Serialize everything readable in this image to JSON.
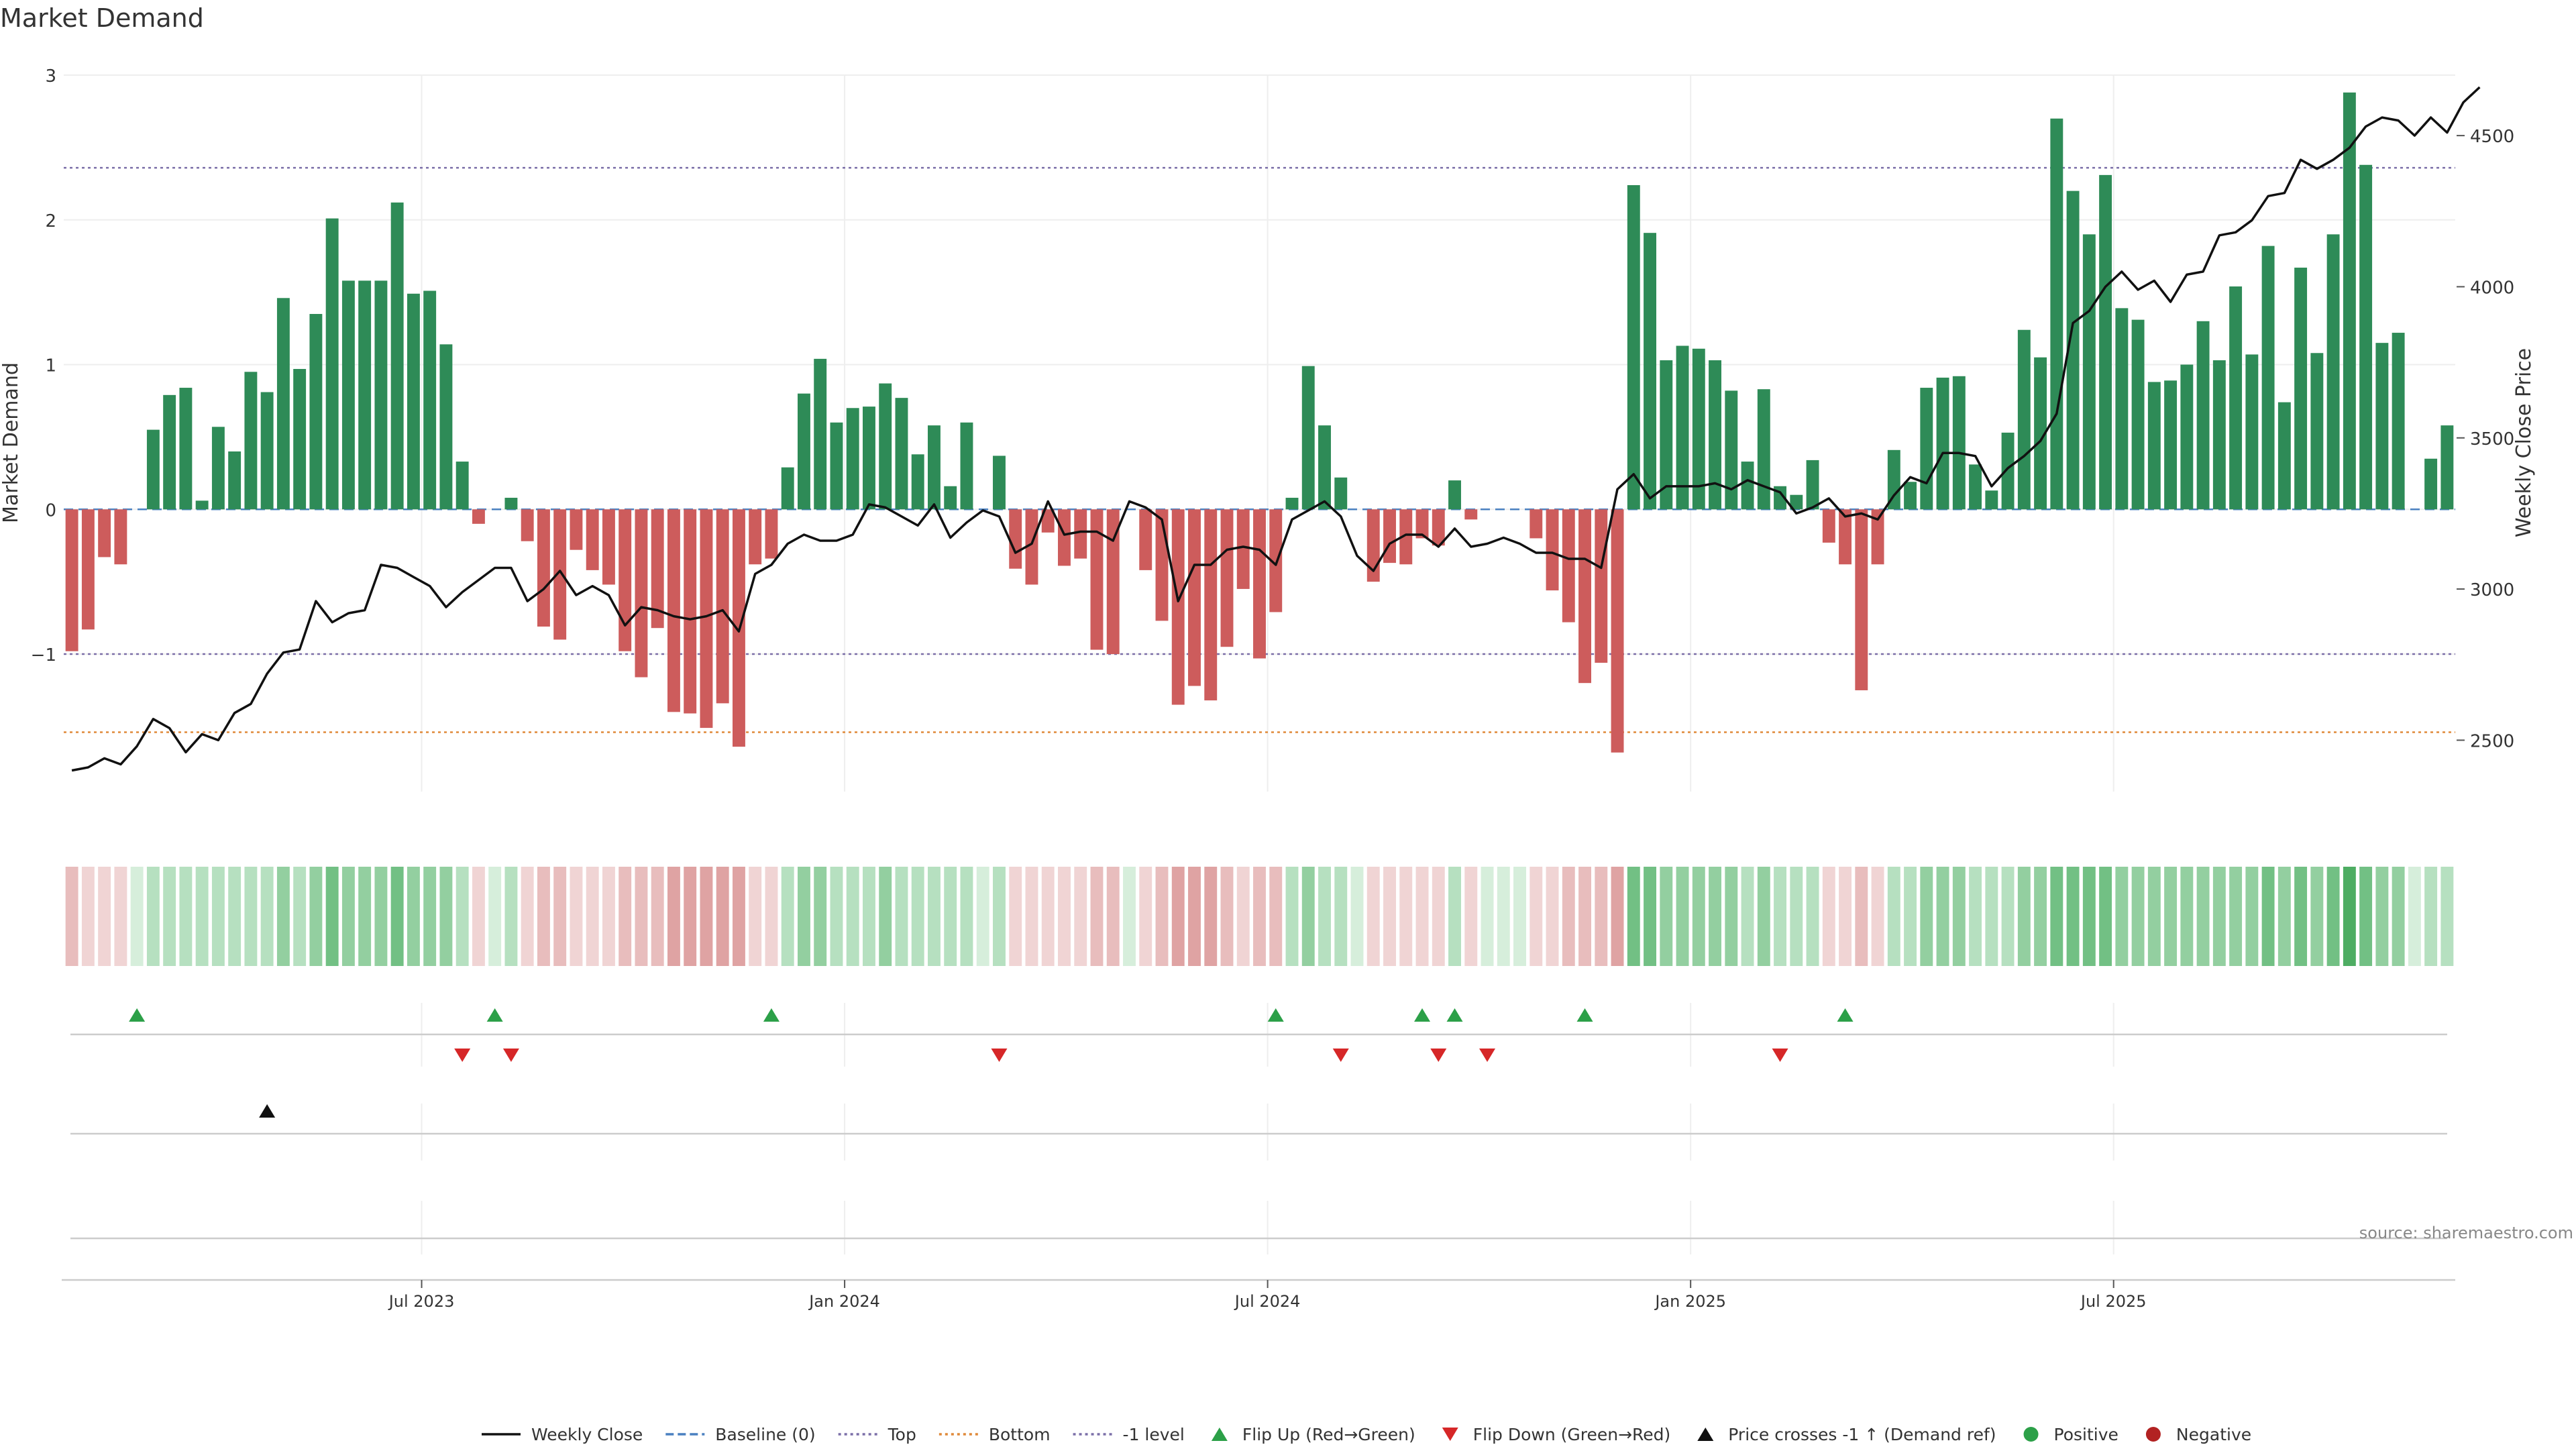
{
  "chart_data": {
    "type": "bar",
    "title": "Market Demand",
    "ylabel_left": "Market Demand",
    "ylabel_right": "Weekly Close Price",
    "source": "source: sharemaestro.com",
    "left_axis": {
      "ylim": [
        -1.95,
        3.0
      ],
      "ticks": [
        -1,
        0,
        1,
        2,
        3
      ],
      "tick_labels": [
        "−1",
        "0",
        "1",
        "2",
        "3"
      ]
    },
    "right_axis": {
      "ylim": [
        2330,
        4700
      ],
      "ticks": [
        2500,
        3000,
        3500,
        4000,
        4500
      ],
      "tick_labels": [
        "2500",
        "3000",
        "3500",
        "4000",
        "4500"
      ]
    },
    "x_ticks": [
      {
        "index": 22,
        "label": "Jul 2023"
      },
      {
        "index": 48,
        "label": "Jan 2024"
      },
      {
        "index": 74,
        "label": "Jul 2024"
      },
      {
        "index": 100,
        "label": "Jan 2025"
      },
      {
        "index": 126,
        "label": "Jul 2025"
      }
    ],
    "reference_lines": [
      {
        "name": "Top",
        "value": 2.36,
        "color": "#7b6fa8",
        "dash": "dotted"
      },
      {
        "name": "Bottom",
        "value": -1.54,
        "color": "#e08a3a",
        "dash": "dotted"
      },
      {
        "name": "-1 level",
        "value": -1.0,
        "color": "#7b6fa8",
        "dash": "dotted"
      },
      {
        "name": "Baseline (0)",
        "value": 0,
        "color": "#4a80c0",
        "dash": "dashed"
      }
    ],
    "colors": {
      "positive": "#2e8b57",
      "negative": "#cd5c5c",
      "price": "#111111",
      "flip_up": "#2ca048",
      "flip_down": "#d62728",
      "cross": "#111111",
      "grid": "#eeeeee"
    },
    "demand": [
      -0.98,
      -0.83,
      -0.33,
      -0.38,
      0.0,
      0.55,
      0.79,
      0.84,
      0.06,
      0.57,
      0.4,
      0.95,
      0.81,
      1.46,
      0.97,
      1.35,
      2.01,
      1.58,
      1.58,
      1.58,
      2.12,
      1.49,
      1.51,
      1.14,
      0.33,
      -0.1,
      0.0,
      0.08,
      -0.22,
      -0.81,
      -0.9,
      -0.28,
      -0.42,
      -0.52,
      -0.98,
      -1.16,
      -0.82,
      -1.4,
      -1.41,
      -1.51,
      -1.34,
      -1.64,
      -0.38,
      -0.34,
      0.29,
      0.8,
      1.04,
      0.6,
      0.7,
      0.71,
      0.87,
      0.77,
      0.38,
      0.58,
      0.16,
      0.6,
      0.0,
      0.37,
      -0.41,
      -0.52,
      -0.16,
      -0.39,
      -0.34,
      -0.97,
      -1.0,
      0.0,
      -0.42,
      -0.77,
      -1.35,
      -1.22,
      -1.32,
      -0.95,
      -0.55,
      -1.03,
      -0.71,
      0.08,
      0.99,
      0.58,
      0.22,
      0.0,
      -0.5,
      -0.37,
      -0.38,
      -0.2,
      -0.25,
      0.2,
      -0.07,
      0.0,
      0.0,
      0.0,
      -0.2,
      -0.56,
      -0.78,
      -1.2,
      -1.06,
      -1.68,
      2.24,
      1.91,
      1.03,
      1.13,
      1.11,
      1.03,
      0.82,
      0.33,
      0.83,
      0.16,
      0.1,
      0.34,
      -0.23,
      -0.38,
      -1.25,
      -0.38,
      0.41,
      0.19,
      0.84,
      0.91,
      0.92,
      0.31,
      0.13,
      0.53,
      1.24,
      1.05,
      2.7,
      2.2,
      1.9,
      2.31,
      1.39,
      1.31,
      0.88,
      0.89,
      1.0,
      1.3,
      1.03,
      1.54,
      1.07,
      1.82,
      0.74,
      1.67,
      1.08,
      1.9,
      2.88,
      2.38,
      1.15,
      1.22,
      0.0,
      0.35,
      0.58
    ],
    "price": [
      2400,
      2410,
      2440,
      2420,
      2480,
      2570,
      2540,
      2460,
      2520,
      2500,
      2590,
      2620,
      2720,
      2790,
      2800,
      2960,
      2890,
      2920,
      2930,
      3080,
      3070,
      3040,
      3010,
      2940,
      2990,
      3030,
      3070,
      3070,
      2960,
      3000,
      3060,
      2980,
      3010,
      2980,
      2880,
      2940,
      2930,
      2910,
      2900,
      2910,
      2930,
      2860,
      3050,
      3080,
      3150,
      3180,
      3160,
      3160,
      3180,
      3280,
      3270,
      3240,
      3210,
      3280,
      3170,
      3220,
      3260,
      3240,
      3120,
      3150,
      3290,
      3180,
      3190,
      3190,
      3160,
      3290,
      3270,
      3230,
      2960,
      3080,
      3080,
      3130,
      3140,
      3130,
      3080,
      3230,
      3260,
      3290,
      3240,
      3110,
      3060,
      3150,
      3180,
      3180,
      3140,
      3200,
      3140,
      3150,
      3170,
      3150,
      3120,
      3120,
      3100,
      3100,
      3070,
      3330,
      3380,
      3300,
      3340,
      3340,
      3340,
      3350,
      3330,
      3360,
      3340,
      3320,
      3250,
      3270,
      3300,
      3240,
      3250,
      3230,
      3310,
      3370,
      3350,
      3450,
      3450,
      3440,
      3340,
      3400,
      3440,
      3490,
      3580,
      3880,
      3920,
      4000,
      4050,
      3990,
      4020,
      3950,
      4040,
      4050,
      4170,
      4180,
      4220,
      4300,
      4310,
      4420,
      4390,
      4420,
      4460,
      4530,
      4560,
      4550,
      4500,
      4560,
      4510,
      4610,
      4660
    ],
    "shade_levels": [
      -2,
      -1,
      -1,
      -1,
      0,
      1,
      1,
      1,
      1,
      1,
      1,
      1,
      1,
      2,
      1,
      2,
      3,
      2,
      2,
      2,
      3,
      2,
      2,
      2,
      1,
      -1,
      0,
      1,
      -1,
      -2,
      -2,
      -1,
      -1,
      -1,
      -2,
      -2,
      -2,
      -3,
      -3,
      -3,
      -3,
      -3,
      -1,
      -1,
      1,
      2,
      2,
      1,
      1,
      1,
      2,
      1,
      1,
      1,
      1,
      1,
      0,
      1,
      -1,
      -1,
      -1,
      -1,
      -1,
      -2,
      -2,
      0,
      -1,
      -2,
      -3,
      -3,
      -3,
      -2,
      -1,
      -2,
      -2,
      1,
      2,
      1,
      1,
      0,
      -1,
      -1,
      -1,
      -1,
      -1,
      1,
      -1,
      0,
      0,
      0,
      -1,
      -1,
      -2,
      -2,
      -2,
      -3,
      3,
      3,
      2,
      2,
      2,
      2,
      2,
      1,
      2,
      1,
      1,
      1,
      -1,
      -1,
      -2,
      -1,
      1,
      1,
      2,
      2,
      2,
      1,
      1,
      1,
      2,
      2,
      3,
      3,
      3,
      3,
      2,
      2,
      2,
      2,
      2,
      2,
      2,
      2,
      2,
      3,
      2,
      3,
      2,
      3,
      4,
      3,
      2,
      2,
      0,
      1,
      1
    ],
    "flip_up_indices": [
      4,
      26,
      43,
      74,
      83,
      85,
      93,
      109
    ],
    "flip_down_indices": [
      24,
      27,
      57,
      78,
      84,
      87,
      105
    ],
    "price_cross_indices": [
      12
    ],
    "positive_indices": [],
    "negative_indices": [],
    "legend": [
      {
        "label": "Weekly Close",
        "kind": "line-solid",
        "color": "#111111"
      },
      {
        "label": "Baseline (0)",
        "kind": "line-dashed",
        "color": "#4a80c0"
      },
      {
        "label": "Top",
        "kind": "line-dotted",
        "color": "#7b6fa8"
      },
      {
        "label": "Bottom",
        "kind": "line-dotted",
        "color": "#e08a3a"
      },
      {
        "label": "-1 level",
        "kind": "line-dotted",
        "color": "#7b6fa8"
      },
      {
        "label": "Flip Up (Red→Green)",
        "kind": "tri-up",
        "color": "#2ca048"
      },
      {
        "label": "Flip Down (Green→Red)",
        "kind": "tri-down",
        "color": "#d62728"
      },
      {
        "label": "Price crosses -1 ↑ (Demand ref)",
        "kind": "tri-up",
        "color": "#111111"
      },
      {
        "label": "Positive",
        "kind": "dot",
        "color": "#2ca048"
      },
      {
        "label": "Negative",
        "kind": "dot",
        "color": "#b22222"
      }
    ]
  }
}
